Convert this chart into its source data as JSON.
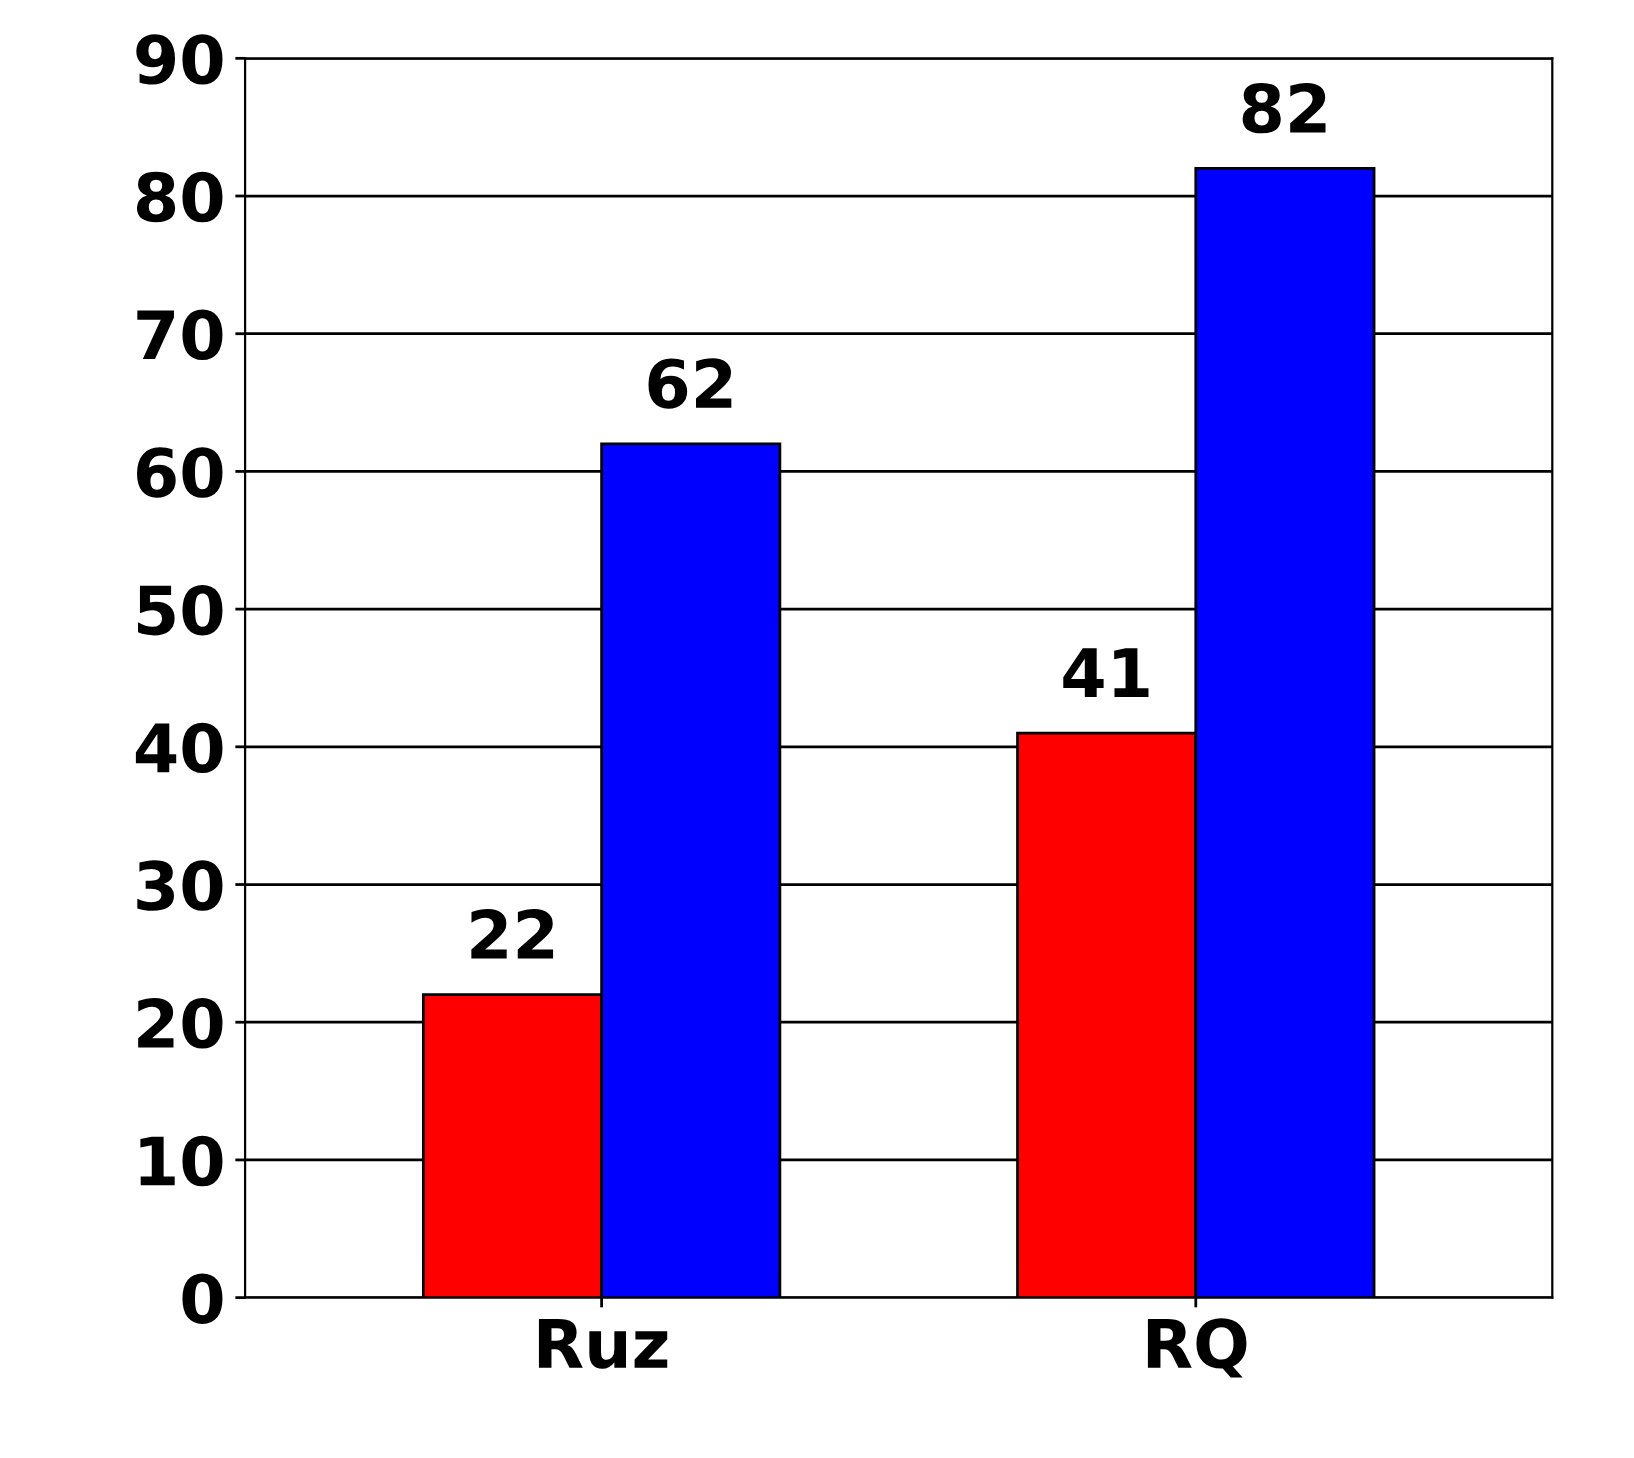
{
  "chart_data": {
    "type": "bar",
    "categories": [
      "Ruz",
      "RQ"
    ],
    "series": [
      {
        "color": "#ff0000",
        "values": [
          22,
          41
        ]
      },
      {
        "color": "#0000ff",
        "values": [
          62,
          82
        ]
      }
    ],
    "ylim": [
      0,
      90
    ],
    "yticks": [
      0,
      10,
      20,
      30,
      40,
      50,
      60,
      70,
      80,
      90
    ],
    "grid": "y",
    "data_labels": true
  }
}
